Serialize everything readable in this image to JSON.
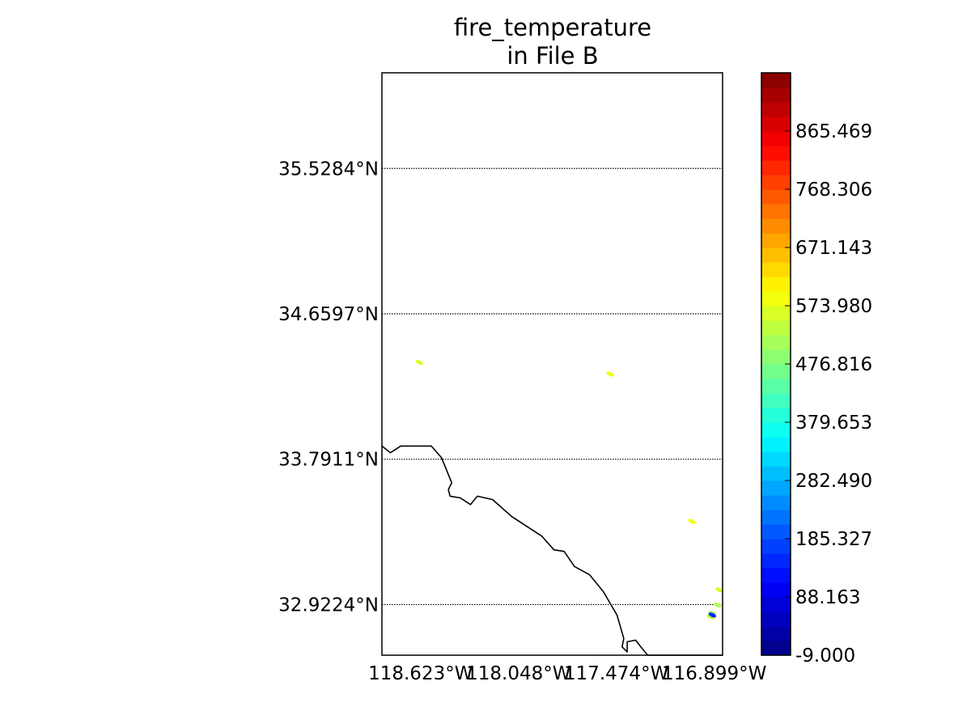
{
  "chart_data": {
    "type": "heatmap",
    "title_line1": "fire_temperature",
    "title_line2": "in File B",
    "lat_ticks": [
      {
        "value": 35.5284,
        "label": "35.5284°N"
      },
      {
        "value": 34.6597,
        "label": "34.6597°N"
      },
      {
        "value": 33.7911,
        "label": "33.7911°N"
      },
      {
        "value": 32.9224,
        "label": "32.9224°N"
      }
    ],
    "lon_ticks": [
      {
        "value": -118.623,
        "label": "118.623°W"
      },
      {
        "value": -118.048,
        "label": "118.048°W"
      },
      {
        "value": -117.474,
        "label": "117.474°W"
      },
      {
        "value": -116.899,
        "label": "116.899°W"
      }
    ],
    "lat_range": [
      32.62,
      36.1
    ],
    "lon_range": [
      -118.85,
      -116.85
    ],
    "grid": "dotted latitude lines",
    "colorbar": {
      "colormap": "jet",
      "range": [
        -9.0,
        962.632
      ],
      "ticks": [
        {
          "value": -9.0,
          "label": "-9.000"
        },
        {
          "value": 88.163,
          "label": "88.163"
        },
        {
          "value": 185.327,
          "label": "185.327"
        },
        {
          "value": 282.49,
          "label": "282.490"
        },
        {
          "value": 379.653,
          "label": "379.653"
        },
        {
          "value": 476.816,
          "label": "476.816"
        },
        {
          "value": 573.98,
          "label": "573.980"
        },
        {
          "value": 671.143,
          "label": "671.143"
        },
        {
          "value": 768.306,
          "label": "768.306"
        },
        {
          "value": 865.469,
          "label": "865.469"
        }
      ]
    },
    "fire_points": [
      {
        "lon": -118.63,
        "lat": 34.37,
        "value": 560
      },
      {
        "lon": -117.51,
        "lat": 34.3,
        "value": 575
      },
      {
        "lon": -117.03,
        "lat": 33.42,
        "value": 580
      },
      {
        "lon": -116.87,
        "lat": 33.01,
        "value": 560
      },
      {
        "lon": -116.88,
        "lat": 32.92,
        "value": 520
      },
      {
        "lon": -116.91,
        "lat": 32.87,
        "value": 500
      },
      {
        "lon": -116.92,
        "lat": 32.85,
        "value": 545
      },
      {
        "lon": -116.91,
        "lat": 32.86,
        "value": 150
      }
    ],
    "coastline": [
      [
        -118.85,
        33.87
      ],
      [
        -118.8,
        33.83
      ],
      [
        -118.74,
        33.87
      ],
      [
        -118.56,
        33.87
      ],
      [
        -118.5,
        33.8
      ],
      [
        -118.44,
        33.65
      ],
      [
        -118.46,
        33.61
      ],
      [
        -118.45,
        33.57
      ],
      [
        -118.39,
        33.56
      ],
      [
        -118.33,
        33.52
      ],
      [
        -118.29,
        33.57
      ],
      [
        -118.2,
        33.55
      ],
      [
        -118.09,
        33.45
      ],
      [
        -117.91,
        33.33
      ],
      [
        -117.84,
        33.25
      ],
      [
        -117.78,
        33.24
      ],
      [
        -117.72,
        33.15
      ],
      [
        -117.63,
        33.1
      ],
      [
        -117.55,
        33.0
      ],
      [
        -117.47,
        32.86
      ],
      [
        -117.43,
        32.72
      ],
      [
        -117.44,
        32.67
      ],
      [
        -117.41,
        32.64
      ],
      [
        -117.41,
        32.7
      ],
      [
        -117.36,
        32.71
      ],
      [
        -117.33,
        32.67
      ],
      [
        -117.29,
        32.62
      ],
      [
        -116.85,
        32.62
      ]
    ]
  }
}
